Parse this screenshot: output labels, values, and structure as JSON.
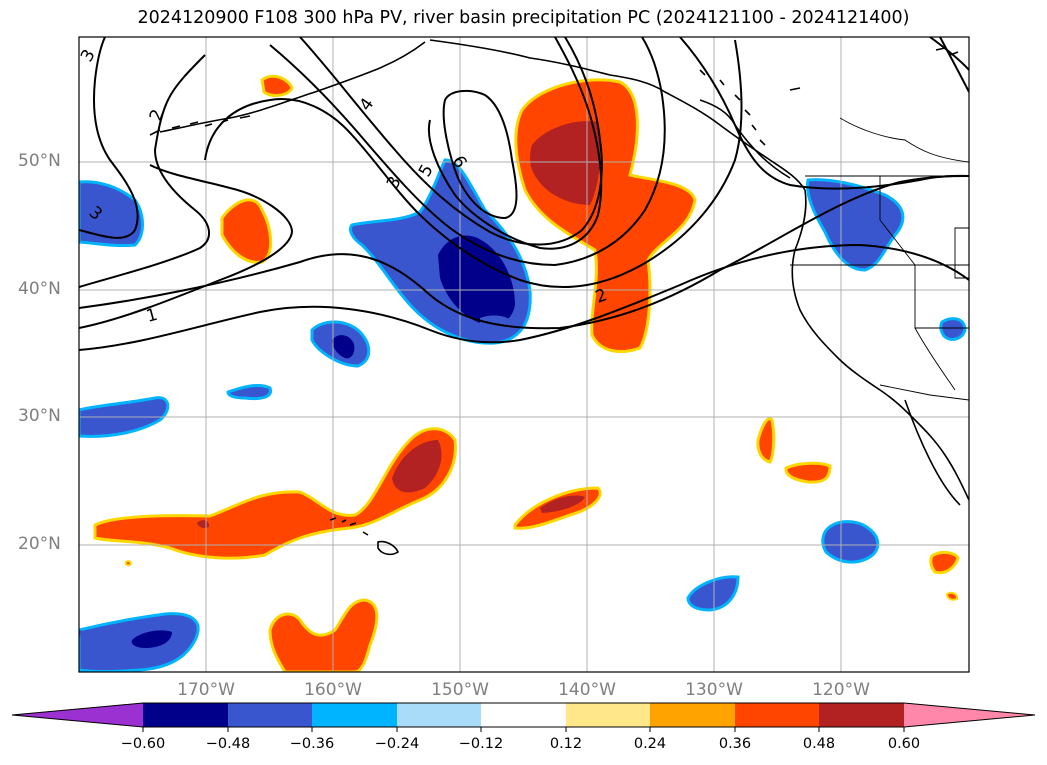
{
  "title": "2024120900 F108 300 hPa PV, river basin precipitation PC (2024121100 - 2024121400)",
  "lat_labels": [
    "50°N",
    "40°N",
    "30°N",
    "20°N"
  ],
  "lon_labels": [
    "170°W",
    "160°W",
    "150°W",
    "140°W",
    "130°W",
    "120°W"
  ],
  "colorbar": {
    "ticks": [
      "−0.60",
      "−0.48",
      "−0.36",
      "−0.24",
      "−0.12",
      "0.12",
      "0.24",
      "0.36",
      "0.48",
      "0.60"
    ],
    "colors": [
      "#9a31d0",
      "#00008b",
      "#3a56cf",
      "#00b4ff",
      "#a8dcf8",
      "#ffffff",
      "#ffe78a",
      "#ffa300",
      "#ff4500",
      "#b22222",
      "#ff88aa"
    ],
    "extend": "both"
  },
  "pv_contour_labels": [
    "1",
    "2",
    "2",
    "3",
    "3",
    "3",
    "4",
    "5",
    "6"
  ],
  "colors": {
    "neg_dark": "#00008b",
    "neg_mid": "#3a56cf",
    "neg_light": "#00b4ff",
    "pos_light": "#ffd700",
    "pos_mid": "#ff4500",
    "pos_dark": "#b22222",
    "contour": "#000000",
    "coast": "#000000",
    "grid": "#b0b0b0",
    "tick_label": "#7f7f7f"
  }
}
